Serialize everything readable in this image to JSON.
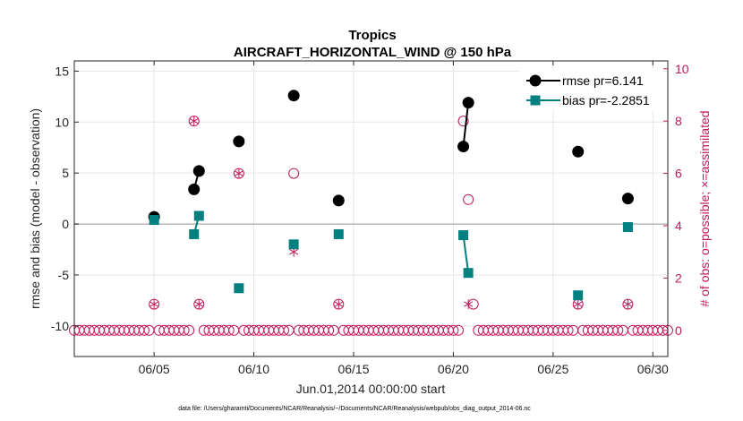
{
  "chart_data": {
    "type": "scatter",
    "title": "Tropics",
    "subtitle": "AIRCRAFT_HORIZONTAL_WIND @ 150 hPa",
    "xlabel": "Jun.01,2014 00:00:00 start",
    "ylabel": "rmse and bias (model - observation)",
    "y2label": "# of obs: o=possible; ×=assimilated",
    "xlim": [
      1,
      30.75
    ],
    "ylim": [
      -13,
      16
    ],
    "y2lim": [
      -1,
      10.3
    ],
    "xticks": [
      5,
      10,
      15,
      20,
      25,
      30
    ],
    "xtick_labels": [
      "06/05",
      "06/10",
      "06/15",
      "06/20",
      "06/25",
      "06/30"
    ],
    "yticks": [
      -10,
      -5,
      0,
      5,
      10,
      15
    ],
    "ytick_labels": [
      "-10",
      "-5",
      "0",
      "5",
      "10",
      "15"
    ],
    "y2ticks": [
      0,
      2,
      4,
      6,
      8,
      10
    ],
    "y2tick_labels": [
      "0",
      "2",
      "4",
      "6",
      "8",
      "10"
    ],
    "grid": true,
    "legend": "top-right",
    "colors": {
      "rmse": "#000000",
      "bias": "#00807f",
      "obs": "#c2185b",
      "zero_line": "#b8b8b8"
    },
    "series": [
      {
        "name": "rmse",
        "legend_label": "rmse pr=6.141",
        "marker": "circle",
        "segments": [
          [
            [
              5.0,
              0.7
            ]
          ],
          [
            [
              7.0,
              3.4
            ],
            [
              7.25,
              5.2
            ]
          ],
          [
            [
              9.25,
              8.1
            ]
          ],
          [
            [
              12.0,
              12.6
            ]
          ],
          [
            [
              14.25,
              2.3
            ]
          ],
          [
            [
              20.5,
              7.6
            ],
            [
              20.75,
              11.9
            ]
          ],
          [
            [
              26.25,
              7.1
            ]
          ],
          [
            [
              28.75,
              2.5
            ]
          ]
        ]
      },
      {
        "name": "bias",
        "legend_label": "bias pr=-2.2851",
        "marker": "square",
        "segments": [
          [
            [
              5.0,
              0.4
            ]
          ],
          [
            [
              7.0,
              -1.0
            ],
            [
              7.25,
              0.8
            ]
          ],
          [
            [
              9.25,
              -6.3
            ]
          ],
          [
            [
              12.0,
              -2.0
            ]
          ],
          [
            [
              14.25,
              -1.0
            ]
          ],
          [
            [
              20.5,
              -1.1
            ],
            [
              20.75,
              -4.8
            ]
          ],
          [
            [
              26.25,
              -7.0
            ]
          ],
          [
            [
              28.75,
              -0.3
            ]
          ]
        ]
      }
    ],
    "obs_possible": {
      "background_start": 1.0,
      "background_end": 30.75,
      "background_step": 0.25,
      "background_value": 0,
      "counts": [
        [
          5.0,
          1
        ],
        [
          7.0,
          8
        ],
        [
          7.25,
          1
        ],
        [
          9.25,
          6
        ],
        [
          12.0,
          6
        ],
        [
          14.25,
          1
        ],
        [
          20.5,
          8
        ],
        [
          20.75,
          5
        ],
        [
          21.0,
          1
        ],
        [
          26.25,
          1
        ],
        [
          28.75,
          1
        ]
      ]
    },
    "obs_assimilated": [
      [
        5.0,
        1
      ],
      [
        7.0,
        8
      ],
      [
        7.25,
        1
      ],
      [
        9.25,
        6
      ],
      [
        12.0,
        3
      ],
      [
        14.25,
        1
      ],
      [
        20.5,
        7
      ],
      [
        20.75,
        1
      ],
      [
        26.25,
        1
      ],
      [
        28.75,
        1
      ]
    ]
  },
  "footer": "data file: /Users/gharamti/Documents/NCAR/Reanalysis/~/Documents/NCAR/Reanalysis/webpub/obs_diag_output_2014-06.nc"
}
